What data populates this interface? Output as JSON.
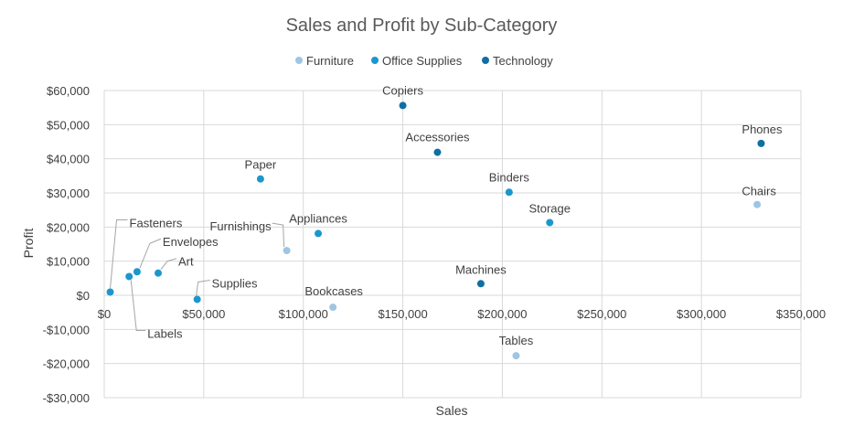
{
  "chart_data": {
    "type": "scatter",
    "title": "Sales and Profit by Sub-Category",
    "xlabel": "Sales",
    "ylabel": "Profit",
    "xlim": [
      0,
      350000
    ],
    "ylim": [
      -30000,
      60000
    ],
    "x_ticks": [
      0,
      50000,
      100000,
      150000,
      200000,
      250000,
      300000,
      350000
    ],
    "y_ticks": [
      -30000,
      -20000,
      -10000,
      0,
      10000,
      20000,
      30000,
      40000,
      50000,
      60000
    ],
    "x_tick_labels": [
      "$0",
      "$50,000",
      "$100,000",
      "$150,000",
      "$200,000",
      "$250,000",
      "$300,000",
      "$350,000"
    ],
    "y_tick_labels": [
      "-$30,000",
      "-$20,000",
      "-$10,000",
      "$0",
      "$10,000",
      "$20,000",
      "$30,000",
      "$40,000",
      "$50,000",
      "$60,000"
    ],
    "grid": true,
    "legend_position": "top",
    "series": [
      {
        "name": "Furniture",
        "color": "#9ec5e3",
        "points": [
          {
            "label": "Chairs",
            "x": 328000,
            "y": 26600
          },
          {
            "label": "Furnishings",
            "x": 91700,
            "y": 13100
          },
          {
            "label": "Bookcases",
            "x": 114900,
            "y": -3500
          },
          {
            "label": "Tables",
            "x": 206900,
            "y": -17700
          }
        ]
      },
      {
        "name": "Office Supplies",
        "color": "#1b97cd",
        "points": [
          {
            "label": "Paper",
            "x": 78500,
            "y": 34100
          },
          {
            "label": "Binders",
            "x": 203400,
            "y": 30200
          },
          {
            "label": "Storage",
            "x": 223800,
            "y": 21300
          },
          {
            "label": "Appliances",
            "x": 107500,
            "y": 18100
          },
          {
            "label": "Art",
            "x": 27100,
            "y": 6500
          },
          {
            "label": "Envelopes",
            "x": 16500,
            "y": 6900
          },
          {
            "label": "Labels",
            "x": 12500,
            "y": 5500
          },
          {
            "label": "Fasteners",
            "x": 3000,
            "y": 950
          },
          {
            "label": "Supplies",
            "x": 46700,
            "y": -1200
          }
        ]
      },
      {
        "name": "Technology",
        "color": "#0f6fa5",
        "points": [
          {
            "label": "Copiers",
            "x": 150000,
            "y": 55600
          },
          {
            "label": "Accessories",
            "x": 167400,
            "y": 41900
          },
          {
            "label": "Phones",
            "x": 330000,
            "y": 44500
          },
          {
            "label": "Machines",
            "x": 189200,
            "y": 3400
          }
        ]
      }
    ]
  }
}
